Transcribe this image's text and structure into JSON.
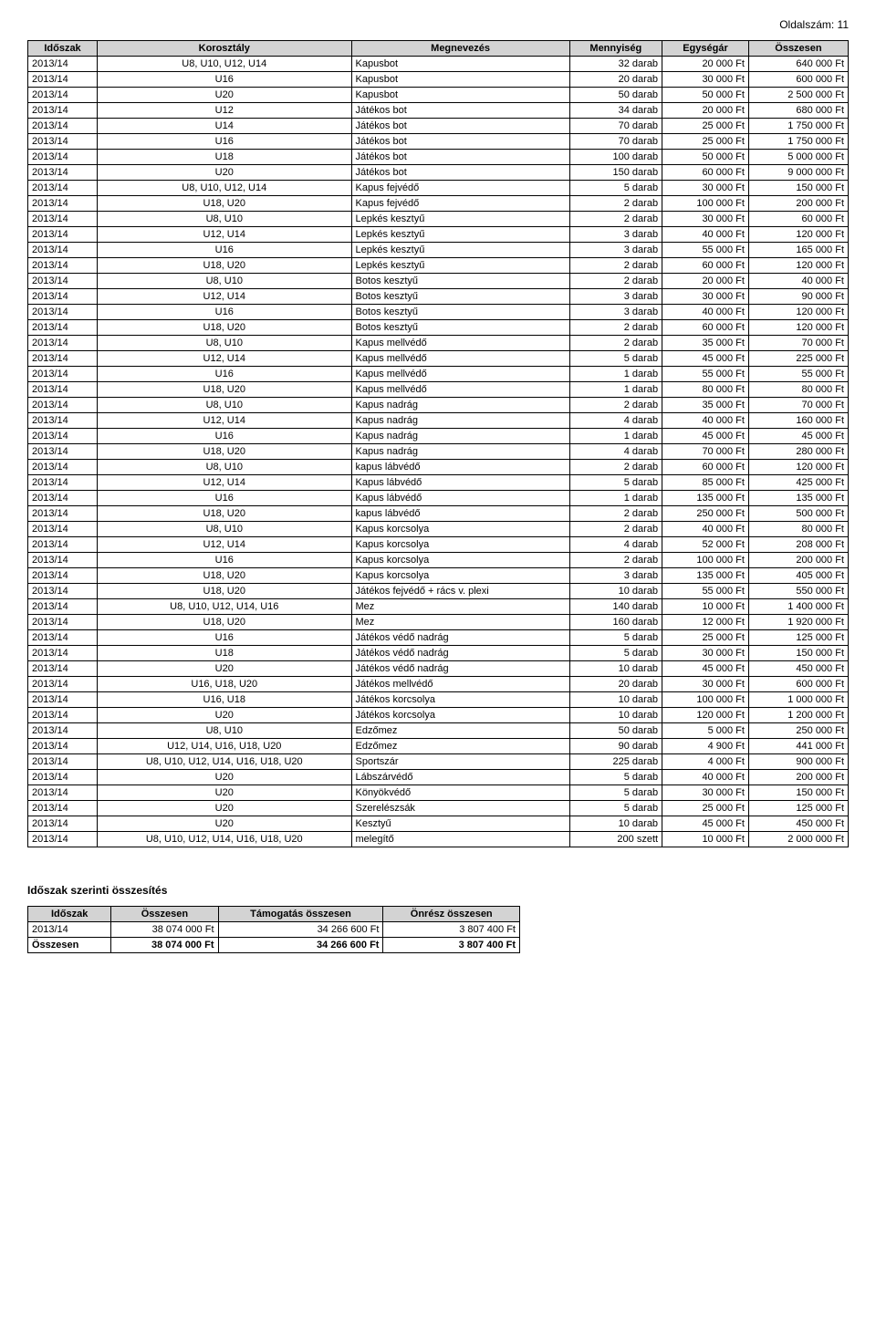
{
  "page_number": "Oldalszám: 11",
  "main_table": {
    "headers": [
      "Időszak",
      "Korosztály",
      "Megnevezés",
      "Mennyiség",
      "Egységár",
      "Összesen"
    ],
    "rows": [
      [
        "2013/14",
        "U8, U10, U12, U14",
        "Kapusbot",
        "32 darab",
        "20 000 Ft",
        "640 000 Ft"
      ],
      [
        "2013/14",
        "U16",
        "Kapusbot",
        "20 darab",
        "30 000 Ft",
        "600 000 Ft"
      ],
      [
        "2013/14",
        "U20",
        "Kapusbot",
        "50 darab",
        "50 000 Ft",
        "2 500 000 Ft"
      ],
      [
        "2013/14",
        "U12",
        "Játékos bot",
        "34 darab",
        "20 000 Ft",
        "680 000 Ft"
      ],
      [
        "2013/14",
        "U14",
        "Játékos bot",
        "70 darab",
        "25 000 Ft",
        "1 750 000 Ft"
      ],
      [
        "2013/14",
        "U16",
        "Játékos bot",
        "70 darab",
        "25 000 Ft",
        "1 750 000 Ft"
      ],
      [
        "2013/14",
        "U18",
        "Játékos bot",
        "100 darab",
        "50 000 Ft",
        "5 000 000 Ft"
      ],
      [
        "2013/14",
        "U20",
        "Játékos bot",
        "150 darab",
        "60 000 Ft",
        "9 000 000 Ft"
      ],
      [
        "2013/14",
        "U8, U10, U12, U14",
        "Kapus fejvédő",
        "5 darab",
        "30 000 Ft",
        "150 000 Ft"
      ],
      [
        "2013/14",
        "U18, U20",
        "Kapus fejvédő",
        "2 darab",
        "100 000 Ft",
        "200 000 Ft"
      ],
      [
        "2013/14",
        "U8, U10",
        "Lepkés kesztyű",
        "2 darab",
        "30 000 Ft",
        "60 000 Ft"
      ],
      [
        "2013/14",
        "U12, U14",
        "Lepkés kesztyű",
        "3 darab",
        "40 000 Ft",
        "120 000 Ft"
      ],
      [
        "2013/14",
        "U16",
        "Lepkés kesztyű",
        "3 darab",
        "55 000 Ft",
        "165 000 Ft"
      ],
      [
        "2013/14",
        "U18, U20",
        "Lepkés kesztyű",
        "2 darab",
        "60 000 Ft",
        "120 000 Ft"
      ],
      [
        "2013/14",
        "U8, U10",
        "Botos kesztyű",
        "2 darab",
        "20 000 Ft",
        "40 000 Ft"
      ],
      [
        "2013/14",
        "U12, U14",
        "Botos kesztyű",
        "3 darab",
        "30 000 Ft",
        "90 000 Ft"
      ],
      [
        "2013/14",
        "U16",
        "Botos kesztyű",
        "3 darab",
        "40 000 Ft",
        "120 000 Ft"
      ],
      [
        "2013/14",
        "U18, U20",
        "Botos kesztyű",
        "2 darab",
        "60 000 Ft",
        "120 000 Ft"
      ],
      [
        "2013/14",
        "U8, U10",
        "Kapus mellvédő",
        "2 darab",
        "35 000 Ft",
        "70 000 Ft"
      ],
      [
        "2013/14",
        "U12, U14",
        "Kapus mellvédő",
        "5 darab",
        "45 000 Ft",
        "225 000 Ft"
      ],
      [
        "2013/14",
        "U16",
        "Kapus mellvédő",
        "1 darab",
        "55 000 Ft",
        "55 000 Ft"
      ],
      [
        "2013/14",
        "U18, U20",
        "Kapus mellvédő",
        "1 darab",
        "80 000 Ft",
        "80 000 Ft"
      ],
      [
        "2013/14",
        "U8, U10",
        "Kapus nadrág",
        "2 darab",
        "35 000 Ft",
        "70 000 Ft"
      ],
      [
        "2013/14",
        "U12, U14",
        "Kapus nadrág",
        "4 darab",
        "40 000 Ft",
        "160 000 Ft"
      ],
      [
        "2013/14",
        "U16",
        "Kapus nadrág",
        "1 darab",
        "45 000 Ft",
        "45 000 Ft"
      ],
      [
        "2013/14",
        "U18, U20",
        "Kapus nadrág",
        "4 darab",
        "70 000 Ft",
        "280 000 Ft"
      ],
      [
        "2013/14",
        "U8, U10",
        "kapus lábvédő",
        "2 darab",
        "60 000 Ft",
        "120 000 Ft"
      ],
      [
        "2013/14",
        "U12, U14",
        "Kapus lábvédő",
        "5 darab",
        "85 000 Ft",
        "425 000 Ft"
      ],
      [
        "2013/14",
        "U16",
        "Kapus lábvédő",
        "1 darab",
        "135 000 Ft",
        "135 000 Ft"
      ],
      [
        "2013/14",
        "U18, U20",
        "kapus lábvédő",
        "2 darab",
        "250 000 Ft",
        "500 000 Ft"
      ],
      [
        "2013/14",
        "U8, U10",
        "Kapus korcsolya",
        "2 darab",
        "40 000 Ft",
        "80 000 Ft"
      ],
      [
        "2013/14",
        "U12, U14",
        "Kapus korcsolya",
        "4 darab",
        "52 000 Ft",
        "208 000 Ft"
      ],
      [
        "2013/14",
        "U16",
        "Kapus korcsolya",
        "2 darab",
        "100 000 Ft",
        "200 000 Ft"
      ],
      [
        "2013/14",
        "U18, U20",
        "Kapus korcsolya",
        "3 darab",
        "135 000 Ft",
        "405 000 Ft"
      ],
      [
        "2013/14",
        "U18, U20",
        "Játékos fejvédő + rács v. plexi",
        "10 darab",
        "55 000 Ft",
        "550 000 Ft"
      ],
      [
        "2013/14",
        "U8, U10, U12, U14, U16",
        "Mez",
        "140 darab",
        "10 000 Ft",
        "1 400 000 Ft"
      ],
      [
        "2013/14",
        "U18, U20",
        "Mez",
        "160 darab",
        "12 000 Ft",
        "1 920 000 Ft"
      ],
      [
        "2013/14",
        "U16",
        "Játékos védő nadrág",
        "5 darab",
        "25 000 Ft",
        "125 000 Ft"
      ],
      [
        "2013/14",
        "U18",
        "Játékos védő nadrág",
        "5 darab",
        "30 000 Ft",
        "150 000 Ft"
      ],
      [
        "2013/14",
        "U20",
        "Játékos védő nadrág",
        "10 darab",
        "45 000 Ft",
        "450 000 Ft"
      ],
      [
        "2013/14",
        "U16, U18, U20",
        "Játékos mellvédő",
        "20 darab",
        "30 000 Ft",
        "600 000 Ft"
      ],
      [
        "2013/14",
        "U16, U18",
        "Játékos korcsolya",
        "10 darab",
        "100 000 Ft",
        "1 000 000 Ft"
      ],
      [
        "2013/14",
        "U20",
        "Játékos korcsolya",
        "10 darab",
        "120 000 Ft",
        "1 200 000 Ft"
      ],
      [
        "2013/14",
        "U8, U10",
        "Edzőmez",
        "50 darab",
        "5 000 Ft",
        "250 000 Ft"
      ],
      [
        "2013/14",
        "U12, U14, U16, U18, U20",
        "Edzőmez",
        "90 darab",
        "4 900 Ft",
        "441 000 Ft"
      ],
      [
        "2013/14",
        "U8, U10, U12, U14, U16, U18, U20",
        "Sportszár",
        "225 darab",
        "4 000 Ft",
        "900 000 Ft"
      ],
      [
        "2013/14",
        "U20",
        "Lábszárvédő",
        "5 darab",
        "40 000 Ft",
        "200 000 Ft"
      ],
      [
        "2013/14",
        "U20",
        "Könyökvédő",
        "5 darab",
        "30 000 Ft",
        "150 000 Ft"
      ],
      [
        "2013/14",
        "U20",
        "Szerelészsák",
        "5 darab",
        "25 000 Ft",
        "125 000 Ft"
      ],
      [
        "2013/14",
        "U20",
        "Kesztyű",
        "10 darab",
        "45 000 Ft",
        "450 000 Ft"
      ],
      [
        "2013/14",
        "U8, U10, U12, U14, U16, U18, U20",
        "melegítő",
        "200 szett",
        "10 000 Ft",
        "2 000 000 Ft"
      ]
    ]
  },
  "summary_section": {
    "title": "Időszak szerinti összesítés",
    "headers": [
      "Időszak",
      "Összesen",
      "Támogatás összesen",
      "Önrész összesen"
    ],
    "rows": [
      [
        "2013/14",
        "38 074 000 Ft",
        "34 266 600 Ft",
        "3 807 400 Ft"
      ],
      [
        "Összesen",
        "38 074 000 Ft",
        "34 266 600 Ft",
        "3 807 400 Ft"
      ]
    ]
  },
  "col_align_main": [
    "left",
    "center",
    "left",
    "right",
    "right",
    "right"
  ],
  "col_align_summary": [
    "left",
    "right",
    "right",
    "right"
  ]
}
